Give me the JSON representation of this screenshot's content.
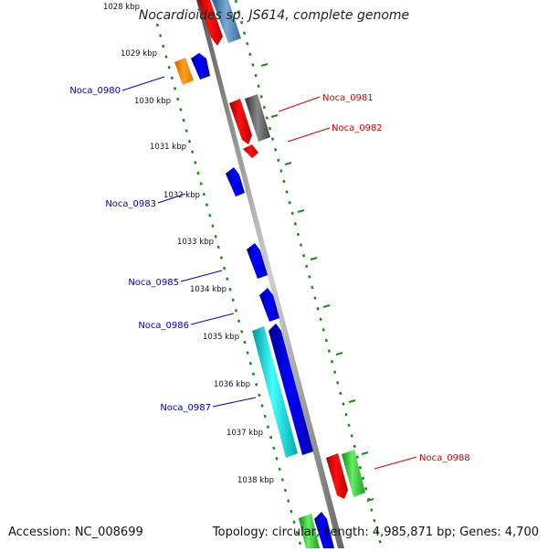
{
  "title": "Nocardioides sp. JS614, complete genome",
  "footer": {
    "accession": "Accession: NC_008699",
    "stats": "Topology: circular; Length: 4,985,871 bp; Genes: 4,700"
  },
  "scale_ticks": [
    "1028 kbp",
    "1029 kbp",
    "1030 kbp",
    "1031 kbp",
    "1032 kbp",
    "1033 kbp",
    "1034 kbp",
    "1035 kbp",
    "1036 kbp",
    "1037 kbp",
    "1038 kbp"
  ],
  "genes": {
    "left": [
      {
        "label": "Noca_0980"
      },
      {
        "label": "Noca_0983"
      },
      {
        "label": "Noca_0985"
      },
      {
        "label": "Noca_0986"
      },
      {
        "label": "Noca_0987"
      }
    ],
    "right": [
      {
        "label": "Noca_0981"
      },
      {
        "label": "Noca_0982"
      },
      {
        "label": "Noca_0988"
      }
    ]
  },
  "colors": {
    "left_label": "#0000bb",
    "right_label": "#cc0000",
    "backbone": "#8a8a8a",
    "dotted_guide": "#1e8a1e",
    "blue_gene": "#0000ee",
    "red_gene": "#ee0000",
    "orange_gene": "#ff8c00",
    "gray_gene": "#666666",
    "steel_gene": "#4682b4",
    "cyan_gene": "#00cccc",
    "green_gene": "#33cc33"
  }
}
